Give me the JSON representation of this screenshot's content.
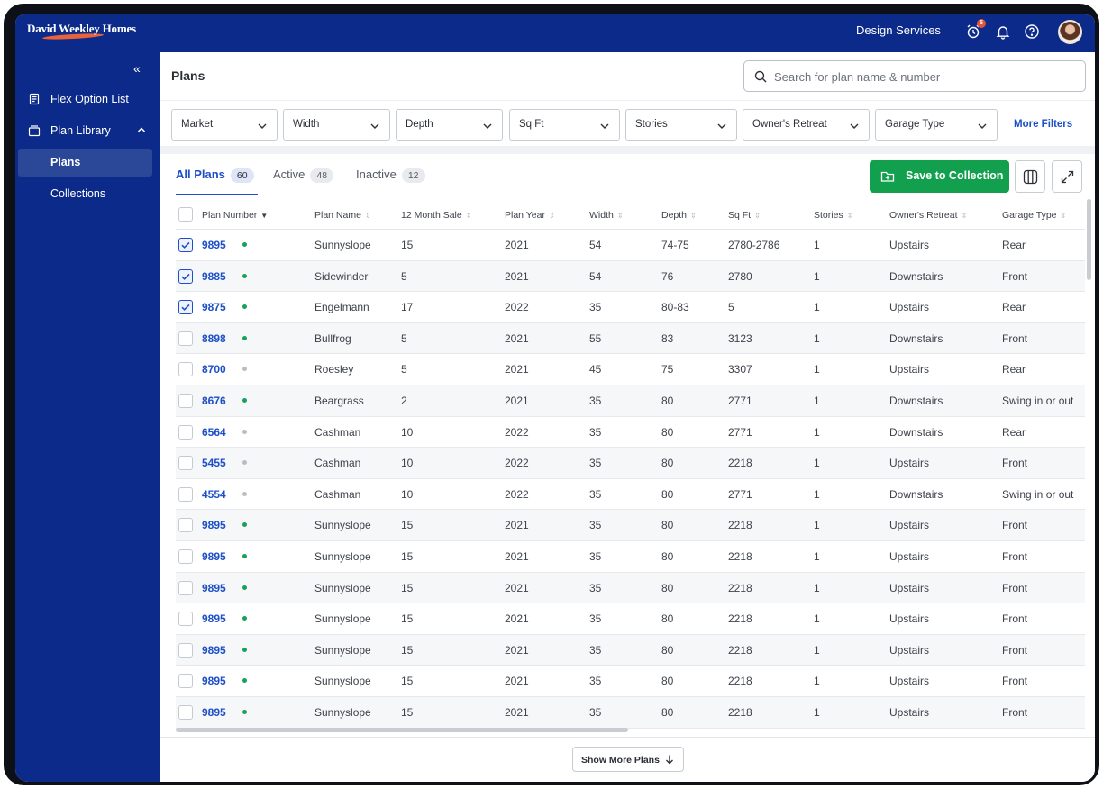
{
  "header": {
    "logo_text": "David Weekley Homes",
    "design_services": "Design Services",
    "notification_badge": "5"
  },
  "sidebar": {
    "collapse_glyph": "«",
    "items": [
      {
        "label": "Flex Option List",
        "icon": "document-list-icon"
      },
      {
        "label": "Plan Library",
        "icon": "library-icon"
      },
      {
        "label": "Plans",
        "active": true
      },
      {
        "label": "Collections"
      }
    ]
  },
  "main": {
    "title": "Plans",
    "search_placeholder": "Search for plan name & number",
    "filters": [
      "Market",
      "Width",
      "Depth",
      "Sq Ft",
      "Stories",
      "Owner's Retreat",
      "Garage Type"
    ],
    "more_filters": "More Filters",
    "tabs": [
      {
        "label": "All Plans",
        "count": "60",
        "active": true
      },
      {
        "label": "Active",
        "count": "48"
      },
      {
        "label": "Inactive",
        "count": "12"
      }
    ],
    "save_button": "Save to Collection",
    "show_more": "Show More Plans"
  },
  "colors": {
    "brand_navy": "#0c2a8a",
    "accent_blue": "#1d4fc7",
    "save_green": "#12a04e",
    "active_dot": "#19a05a",
    "inactive_dot": "#b8bcc4"
  },
  "table": {
    "columns": [
      "Plan Number",
      "Plan Name",
      "12 Month Sale",
      "Plan Year",
      "Width",
      "Depth",
      "Sq Ft",
      "Stories",
      "Owner's Retreat",
      "Garage Type"
    ],
    "rows": [
      {
        "checked": true,
        "status": "active",
        "cells": [
          "9895",
          "Sunnyslope",
          "15",
          "2021",
          "54",
          "74-75",
          "2780-2786",
          "1",
          "Upstairs",
          "Rear"
        ]
      },
      {
        "checked": true,
        "status": "active",
        "cells": [
          "9885",
          "Sidewinder",
          "5",
          "2021",
          "54",
          "76",
          "2780",
          "1",
          "Downstairs",
          "Front"
        ]
      },
      {
        "checked": true,
        "status": "active",
        "cells": [
          "9875",
          "Engelmann",
          "17",
          "2022",
          "35",
          "80-83",
          "5",
          "1",
          "Upstairs",
          "Rear"
        ]
      },
      {
        "checked": false,
        "status": "active",
        "cells": [
          "8898",
          "Bullfrog",
          "5",
          "2021",
          "55",
          "83",
          "3123",
          "1",
          "Downstairs",
          "Front"
        ]
      },
      {
        "checked": false,
        "status": "inactive",
        "cells": [
          "8700",
          "Roesley",
          "5",
          "2021",
          "45",
          "75",
          "3307",
          "1",
          "Upstairs",
          "Rear"
        ]
      },
      {
        "checked": false,
        "status": "active",
        "cells": [
          "8676",
          "Beargrass",
          "2",
          "2021",
          "35",
          "80",
          "2771",
          "1",
          "Downstairs",
          "Swing in or out"
        ]
      },
      {
        "checked": false,
        "status": "inactive",
        "cells": [
          "6564",
          "Cashman",
          "10",
          "2022",
          "35",
          "80",
          "2771",
          "1",
          "Downstairs",
          "Rear"
        ]
      },
      {
        "checked": false,
        "status": "inactive",
        "cells": [
          "5455",
          "Cashman",
          "10",
          "2022",
          "35",
          "80",
          "2218",
          "1",
          "Upstairs",
          "Front"
        ]
      },
      {
        "checked": false,
        "status": "inactive",
        "cells": [
          "4554",
          "Cashman",
          "10",
          "2022",
          "35",
          "80",
          "2771",
          "1",
          "Downstairs",
          "Swing in or out"
        ]
      },
      {
        "checked": false,
        "status": "active",
        "cells": [
          "9895",
          "Sunnyslope",
          "15",
          "2021",
          "35",
          "80",
          "2218",
          "1",
          "Upstairs",
          "Front"
        ]
      },
      {
        "checked": false,
        "status": "active",
        "cells": [
          "9895",
          "Sunnyslope",
          "15",
          "2021",
          "35",
          "80",
          "2218",
          "1",
          "Upstairs",
          "Front"
        ]
      },
      {
        "checked": false,
        "status": "active",
        "cells": [
          "9895",
          "Sunnyslope",
          "15",
          "2021",
          "35",
          "80",
          "2218",
          "1",
          "Upstairs",
          "Front"
        ]
      },
      {
        "checked": false,
        "status": "active",
        "cells": [
          "9895",
          "Sunnyslope",
          "15",
          "2021",
          "35",
          "80",
          "2218",
          "1",
          "Upstairs",
          "Front"
        ]
      },
      {
        "checked": false,
        "status": "active",
        "cells": [
          "9895",
          "Sunnyslope",
          "15",
          "2021",
          "35",
          "80",
          "2218",
          "1",
          "Upstairs",
          "Front"
        ]
      },
      {
        "checked": false,
        "status": "active",
        "cells": [
          "9895",
          "Sunnyslope",
          "15",
          "2021",
          "35",
          "80",
          "2218",
          "1",
          "Upstairs",
          "Front"
        ]
      },
      {
        "checked": false,
        "status": "active",
        "cells": [
          "9895",
          "Sunnyslope",
          "15",
          "2021",
          "35",
          "80",
          "2218",
          "1",
          "Upstairs",
          "Front"
        ]
      }
    ]
  }
}
